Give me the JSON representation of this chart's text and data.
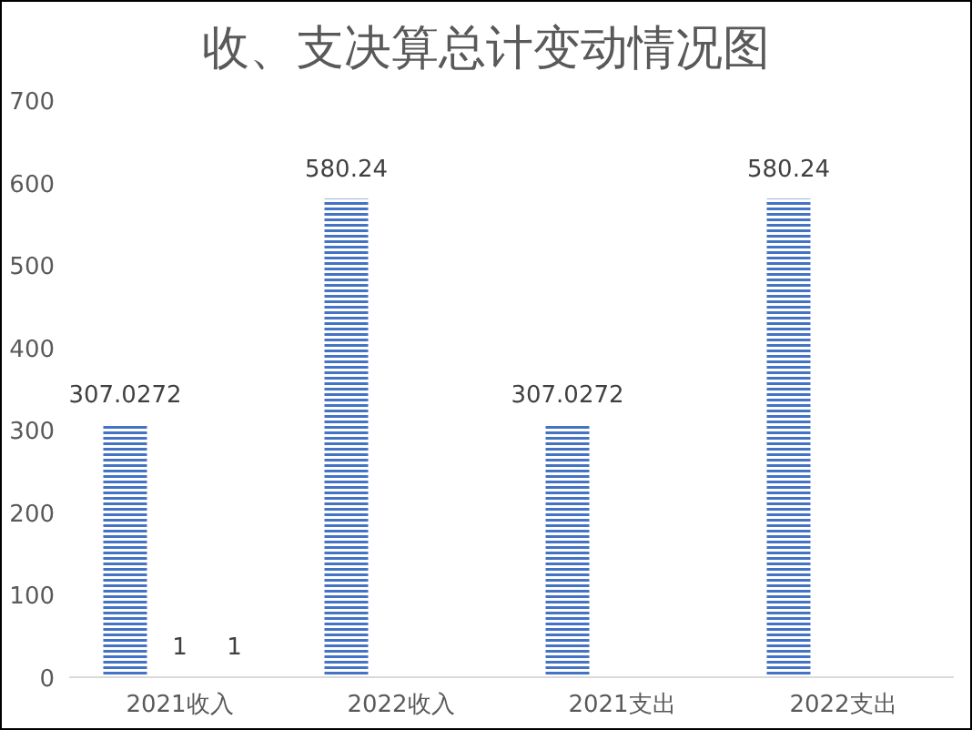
{
  "chart_data": {
    "type": "bar",
    "title": "收、支决算总计变动情况图",
    "categories": [
      "2021收入",
      "2022收入",
      "2021支出",
      "2022支出"
    ],
    "series": [
      {
        "color": "#4472c4",
        "values": [
          307.0272,
          580.24,
          307.0272,
          580.24
        ]
      },
      {
        "color": "#4472c4",
        "values": [
          1,
          null,
          null,
          null
        ]
      },
      {
        "color": "#4472c4",
        "values": [
          1,
          null,
          null,
          null
        ]
      }
    ],
    "ylim": [
      0,
      700
    ],
    "yticks": [
      0,
      100,
      200,
      300,
      400,
      500,
      600,
      700
    ],
    "grid": false,
    "data_labels": true
  }
}
